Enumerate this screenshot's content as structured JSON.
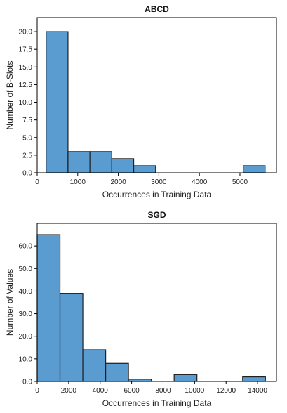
{
  "chart_data": [
    {
      "type": "bar",
      "title": "ABCD",
      "xlabel": "Occurrences in Training Data",
      "ylabel": "Number of B-Slots",
      "xlim": [
        0,
        5900
      ],
      "ylim": [
        0,
        22
      ],
      "x_ticks": [
        0,
        1000,
        2000,
        3000,
        4000,
        5000
      ],
      "x_tick_labels": [
        "0",
        "1000",
        "2000",
        "3000",
        "4000",
        "5000"
      ],
      "y_ticks": [
        0,
        2.5,
        5,
        7.5,
        10,
        12.5,
        15,
        17.5,
        20
      ],
      "y_tick_labels": [
        "0.0",
        "2.5",
        "5.0",
        "7.5",
        "10.0",
        "12.5",
        "15.0",
        "17.5",
        "20.0"
      ],
      "bins": [
        {
          "x0": 220,
          "x1": 760,
          "value": 20
        },
        {
          "x0": 760,
          "x1": 1300,
          "value": 3
        },
        {
          "x0": 1300,
          "x1": 1840,
          "value": 3
        },
        {
          "x0": 1840,
          "x1": 2380,
          "value": 2
        },
        {
          "x0": 2380,
          "x1": 2920,
          "value": 1
        },
        {
          "x0": 5080,
          "x1": 5620,
          "value": 1
        }
      ]
    },
    {
      "type": "bar",
      "title": "SGD",
      "xlabel": "Occurrences in Training Data",
      "ylabel": "Number of Values",
      "xlim": [
        0,
        15200
      ],
      "ylim": [
        0,
        70
      ],
      "x_ticks": [
        0,
        2000,
        4000,
        6000,
        8000,
        10000,
        12000,
        14000
      ],
      "x_tick_labels": [
        "0",
        "2000",
        "4000",
        "6000",
        "8000",
        "10000",
        "12000",
        "14000"
      ],
      "y_ticks": [
        0,
        10,
        20,
        30,
        40,
        50,
        60
      ],
      "y_tick_labels": [
        "0.0",
        "10.0",
        "20.0",
        "30.0",
        "40.0",
        "50.0",
        "60.0"
      ],
      "bins": [
        {
          "x0": 0,
          "x1": 1450,
          "value": 65
        },
        {
          "x0": 1450,
          "x1": 2900,
          "value": 39
        },
        {
          "x0": 2900,
          "x1": 4350,
          "value": 14
        },
        {
          "x0": 4350,
          "x1": 5800,
          "value": 8
        },
        {
          "x0": 5800,
          "x1": 7250,
          "value": 1
        },
        {
          "x0": 8700,
          "x1": 10150,
          "value": 3
        },
        {
          "x0": 13050,
          "x1": 14500,
          "value": 2
        }
      ]
    }
  ]
}
